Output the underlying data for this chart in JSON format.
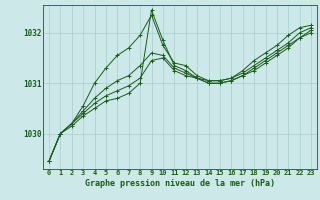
{
  "title": "Graphe pression niveau de la mer (hPa)",
  "xlabel": "Graphe pression niveau de la mer (hPa)",
  "background_color": "#cce8e8",
  "plot_area_color": "#cce8e8",
  "line_color": "#1a5c1a",
  "grid_color": "#aacccc",
  "text_color": "#1a5c1a",
  "ylim": [
    1029.3,
    1032.55
  ],
  "yticks": [
    1030,
    1031,
    1032
  ],
  "xticks": [
    0,
    1,
    2,
    3,
    4,
    5,
    6,
    7,
    8,
    9,
    10,
    11,
    12,
    13,
    14,
    15,
    16,
    17,
    18,
    19,
    20,
    21,
    22,
    23
  ],
  "series": [
    [
      1029.45,
      1030.0,
      1030.2,
      1030.55,
      1031.0,
      1031.3,
      1031.55,
      1031.7,
      1031.95,
      1032.35,
      1031.75,
      1031.4,
      1031.35,
      1031.15,
      1031.05,
      1031.05,
      1031.1,
      1031.25,
      1031.45,
      1031.6,
      1031.75,
      1031.95,
      1032.1,
      1032.15
    ],
    [
      1029.45,
      1030.0,
      1030.2,
      1030.45,
      1030.7,
      1030.9,
      1031.05,
      1031.15,
      1031.35,
      1031.6,
      1031.55,
      1031.3,
      1031.2,
      1031.1,
      1031.05,
      1031.05,
      1031.1,
      1031.2,
      1031.35,
      1031.5,
      1031.65,
      1031.8,
      1032.0,
      1032.1
    ],
    [
      1029.45,
      1030.0,
      1030.2,
      1030.4,
      1030.6,
      1030.75,
      1030.85,
      1030.95,
      1031.1,
      1031.45,
      1031.5,
      1031.25,
      1031.15,
      1031.1,
      1031.0,
      1031.0,
      1031.05,
      1031.15,
      1031.3,
      1031.45,
      1031.6,
      1031.75,
      1031.9,
      1032.05
    ],
    [
      1029.45,
      1030.0,
      1030.15,
      1030.35,
      1030.5,
      1030.65,
      1030.7,
      1030.8,
      1031.0,
      1032.45,
      1031.85,
      1031.35,
      1031.25,
      1031.1,
      1031.0,
      1031.0,
      1031.05,
      1031.15,
      1031.25,
      1031.4,
      1031.55,
      1031.7,
      1031.9,
      1032.0
    ]
  ]
}
